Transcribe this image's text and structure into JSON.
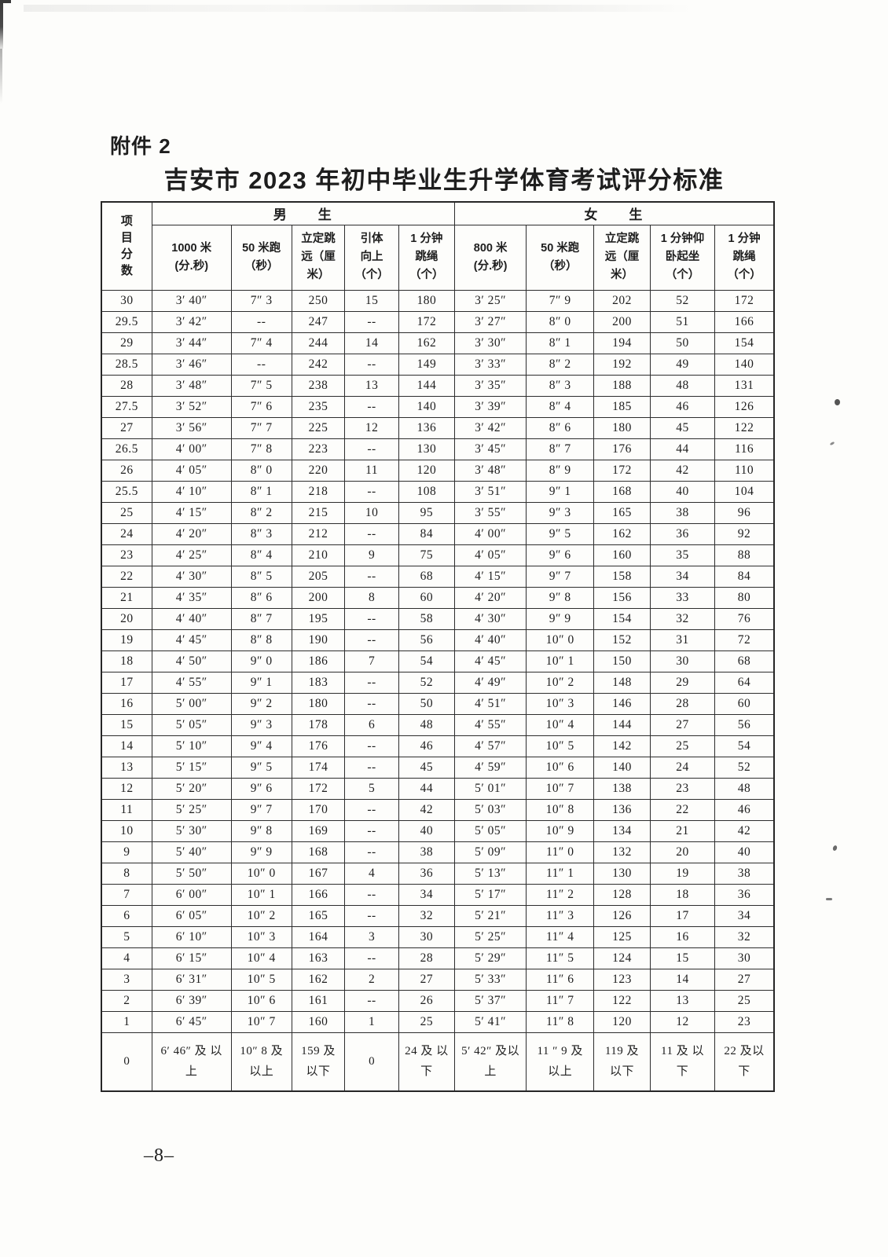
{
  "page": {
    "attachment_label": "附件 2",
    "title": "吉安市 2023 年初中毕业生升学体育考试评分标准",
    "page_number": "–8–"
  },
  "table": {
    "corner_header": "项\n目\n分\n数",
    "group_male": "男　　生",
    "group_female": "女　　生",
    "columns": [
      "1000 米\n(分.秒)",
      "50 米跑\n（秒）",
      "立定跳\n远（厘\n米）",
      "引体\n向上\n（个）",
      "1 分钟\n跳绳\n（个）",
      "800 米\n(分.秒)",
      "50 米跑\n（秒）",
      "立定跳\n远（厘\n米）",
      "1 分钟仰\n卧起坐\n（个）",
      "1 分钟\n跳绳\n（个）"
    ],
    "rows": [
      [
        "30",
        "3′ 40″",
        "7″ 3",
        "250",
        "15",
        "180",
        "3′ 25″",
        "7″ 9",
        "202",
        "52",
        "172"
      ],
      [
        "29.5",
        "3′ 42″",
        "--",
        "247",
        "--",
        "172",
        "3′ 27″",
        "8″ 0",
        "200",
        "51",
        "166"
      ],
      [
        "29",
        "3′ 44″",
        "7″ 4",
        "244",
        "14",
        "162",
        "3′ 30″",
        "8″ 1",
        "194",
        "50",
        "154"
      ],
      [
        "28.5",
        "3′ 46″",
        "--",
        "242",
        "--",
        "149",
        "3′ 33″",
        "8″ 2",
        "192",
        "49",
        "140"
      ],
      [
        "28",
        "3′ 48″",
        "7″ 5",
        "238",
        "13",
        "144",
        "3′ 35″",
        "8″ 3",
        "188",
        "48",
        "131"
      ],
      [
        "27.5",
        "3′ 52″",
        "7″ 6",
        "235",
        "--",
        "140",
        "3′ 39″",
        "8″ 4",
        "185",
        "46",
        "126"
      ],
      [
        "27",
        "3′ 56″",
        "7″ 7",
        "225",
        "12",
        "136",
        "3′ 42″",
        "8″ 6",
        "180",
        "45",
        "122"
      ],
      [
        "26.5",
        "4′ 00″",
        "7″ 8",
        "223",
        "--",
        "130",
        "3′ 45″",
        "8″ 7",
        "176",
        "44",
        "116"
      ],
      [
        "26",
        "4′ 05″",
        "8″ 0",
        "220",
        "11",
        "120",
        "3′ 48″",
        "8″ 9",
        "172",
        "42",
        "110"
      ],
      [
        "25.5",
        "4′ 10″",
        "8″ 1",
        "218",
        "--",
        "108",
        "3′ 51″",
        "9″ 1",
        "168",
        "40",
        "104"
      ],
      [
        "25",
        "4′ 15″",
        "8″ 2",
        "215",
        "10",
        "95",
        "3′ 55″",
        "9″ 3",
        "165",
        "38",
        "96"
      ],
      [
        "24",
        "4′ 20″",
        "8″ 3",
        "212",
        "--",
        "84",
        "4′ 00″",
        "9″ 5",
        "162",
        "36",
        "92"
      ],
      [
        "23",
        "4′ 25″",
        "8″ 4",
        "210",
        "9",
        "75",
        "4′ 05″",
        "9″ 6",
        "160",
        "35",
        "88"
      ],
      [
        "22",
        "4′ 30″",
        "8″ 5",
        "205",
        "--",
        "68",
        "4′ 15″",
        "9″ 7",
        "158",
        "34",
        "84"
      ],
      [
        "21",
        "4′ 35″",
        "8″ 6",
        "200",
        "8",
        "60",
        "4′ 20″",
        "9″ 8",
        "156",
        "33",
        "80"
      ],
      [
        "20",
        "4′ 40″",
        "8″ 7",
        "195",
        "--",
        "58",
        "4′ 30″",
        "9″ 9",
        "154",
        "32",
        "76"
      ],
      [
        "19",
        "4′ 45″",
        "8″ 8",
        "190",
        "--",
        "56",
        "4′ 40″",
        "10″ 0",
        "152",
        "31",
        "72"
      ],
      [
        "18",
        "4′ 50″",
        "9″ 0",
        "186",
        "7",
        "54",
        "4′ 45″",
        "10″ 1",
        "150",
        "30",
        "68"
      ],
      [
        "17",
        "4′ 55″",
        "9″ 1",
        "183",
        "--",
        "52",
        "4′ 49″",
        "10″ 2",
        "148",
        "29",
        "64"
      ],
      [
        "16",
        "5′ 00″",
        "9″ 2",
        "180",
        "--",
        "50",
        "4′ 51″",
        "10″ 3",
        "146",
        "28",
        "60"
      ],
      [
        "15",
        "5′ 05″",
        "9″ 3",
        "178",
        "6",
        "48",
        "4′ 55″",
        "10″ 4",
        "144",
        "27",
        "56"
      ],
      [
        "14",
        "5′ 10″",
        "9″ 4",
        "176",
        "--",
        "46",
        "4′ 57″",
        "10″ 5",
        "142",
        "25",
        "54"
      ],
      [
        "13",
        "5′ 15″",
        "9″ 5",
        "174",
        "--",
        "45",
        "4′ 59″",
        "10″ 6",
        "140",
        "24",
        "52"
      ],
      [
        "12",
        "5′ 20″",
        "9″ 6",
        "172",
        "5",
        "44",
        "5′ 01″",
        "10″ 7",
        "138",
        "23",
        "48"
      ],
      [
        "11",
        "5′ 25″",
        "9″ 7",
        "170",
        "--",
        "42",
        "5′ 03″",
        "10″ 8",
        "136",
        "22",
        "46"
      ],
      [
        "10",
        "5′ 30″",
        "9″ 8",
        "169",
        "--",
        "40",
        "5′ 05″",
        "10″ 9",
        "134",
        "21",
        "42"
      ],
      [
        "9",
        "5′ 40″",
        "9″ 9",
        "168",
        "--",
        "38",
        "5′ 09″",
        "11″ 0",
        "132",
        "20",
        "40"
      ],
      [
        "8",
        "5′ 50″",
        "10″ 0",
        "167",
        "4",
        "36",
        "5′ 13″",
        "11″ 1",
        "130",
        "19",
        "38"
      ],
      [
        "7",
        "6′ 00″",
        "10″ 1",
        "166",
        "--",
        "34",
        "5′ 17″",
        "11″ 2",
        "128",
        "18",
        "36"
      ],
      [
        "6",
        "6′ 05″",
        "10″ 2",
        "165",
        "--",
        "32",
        "5′ 21″",
        "11″ 3",
        "126",
        "17",
        "34"
      ],
      [
        "5",
        "6′ 10″",
        "10″ 3",
        "164",
        "3",
        "30",
        "5′ 25″",
        "11″ 4",
        "125",
        "16",
        "32"
      ],
      [
        "4",
        "6′ 15″",
        "10″ 4",
        "163",
        "--",
        "28",
        "5′ 29″",
        "11″ 5",
        "124",
        "15",
        "30"
      ],
      [
        "3",
        "6′ 31″",
        "10″ 5",
        "162",
        "2",
        "27",
        "5′ 33″",
        "11″ 6",
        "123",
        "14",
        "27"
      ],
      [
        "2",
        "6′ 39″",
        "10″ 6",
        "161",
        "--",
        "26",
        "5′ 37″",
        "11″ 7",
        "122",
        "13",
        "25"
      ],
      [
        "1",
        "6′ 45″",
        "10″ 7",
        "160",
        "1",
        "25",
        "5′ 41″",
        "11″ 8",
        "120",
        "12",
        "23"
      ],
      [
        "0",
        "6′ 46″ 及 以上",
        "10″ 8 及以上",
        "159 及 以下",
        "0",
        "24 及 以下",
        "5′ 42″ 及以上",
        "11 ″ 9 及 以上",
        "119 及 以下",
        "11 及 以下",
        "22 及以 下"
      ]
    ]
  }
}
